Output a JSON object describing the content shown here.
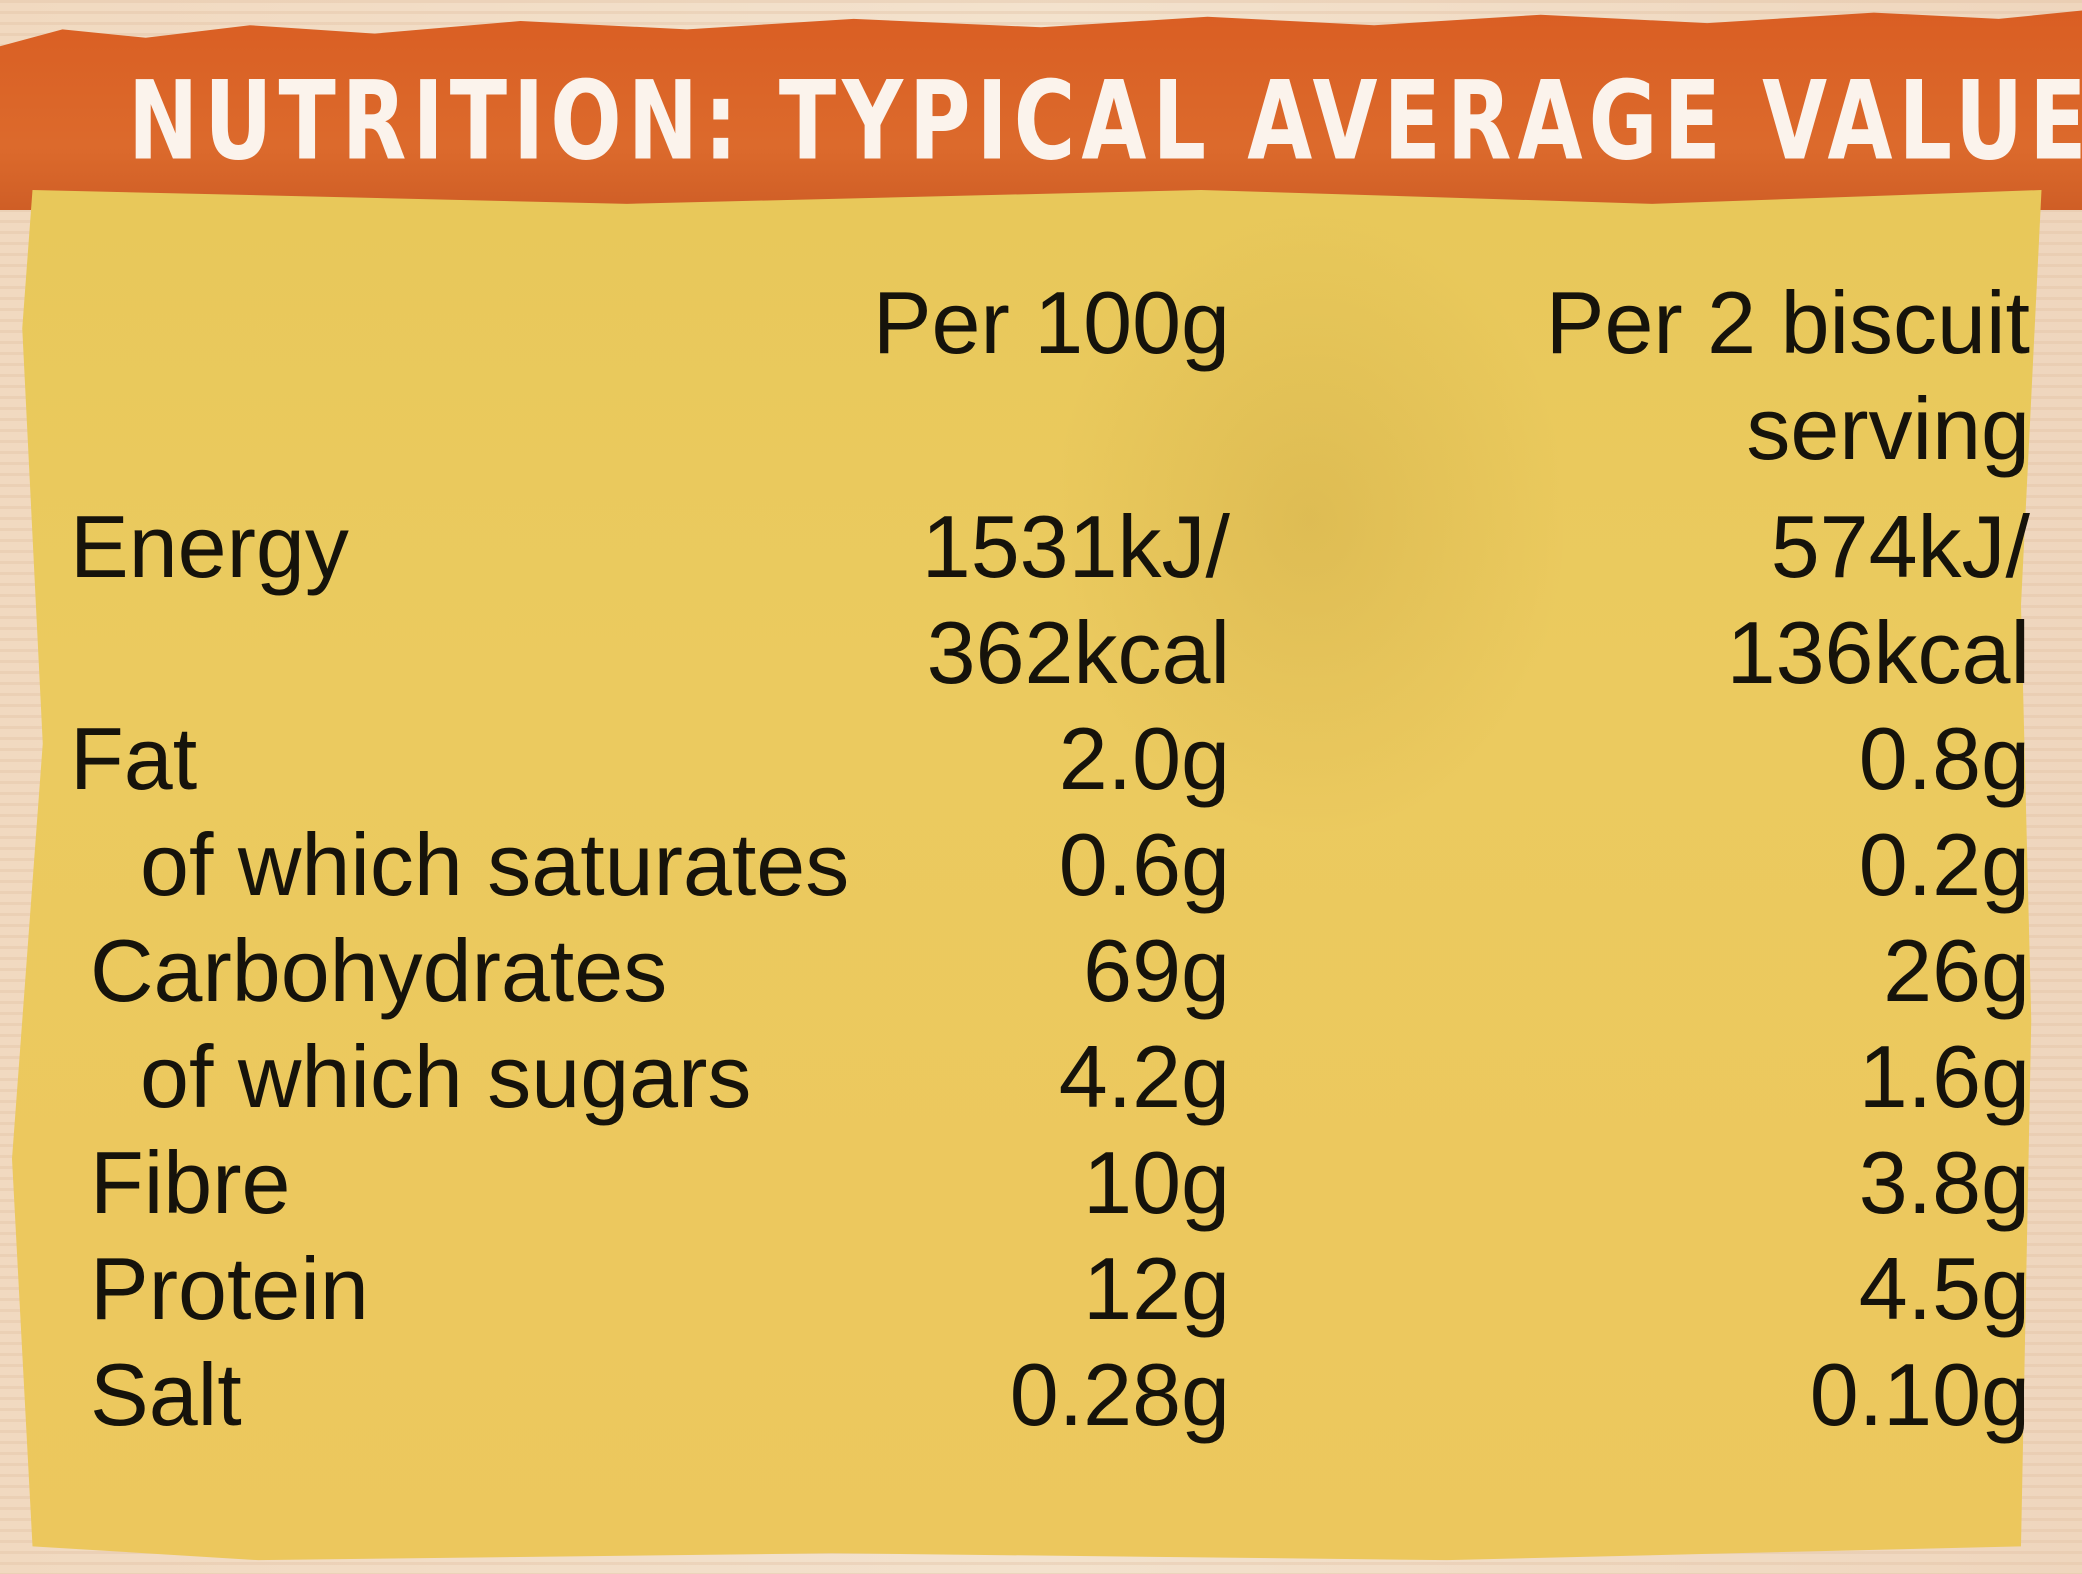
{
  "title": "NUTRITION: TYPICAL AVERAGE VALUES",
  "columns": {
    "per_100g": "Per 100g",
    "per_serving_line1": "Per 2 biscuit",
    "per_serving_line2": "serving"
  },
  "rows": [
    {
      "nutrient": "Energy",
      "per_100g_line1": "1531kJ/",
      "per_100g_line2": "362kcal",
      "per_serving_line1": "574kJ/",
      "per_serving_line2": "136kcal"
    },
    {
      "nutrient": "Fat",
      "per_100g": "2.0g",
      "per_serving": "0.8g"
    },
    {
      "nutrient": "of which saturates",
      "per_100g": "0.6g",
      "per_serving": "0.2g"
    },
    {
      "nutrient": "Carbohydrates",
      "per_100g": "69g",
      "per_serving": "26g"
    },
    {
      "nutrient": "of which sugars",
      "per_100g": "4.2g",
      "per_serving": "1.6g"
    },
    {
      "nutrient": "Fibre",
      "per_100g": "10g",
      "per_serving": "3.8g"
    },
    {
      "nutrient": "Protein",
      "per_100g": "12g",
      "per_serving": "4.5g"
    },
    {
      "nutrient": "Salt",
      "per_100g": "0.28g",
      "per_serving": "0.10g"
    }
  ]
}
